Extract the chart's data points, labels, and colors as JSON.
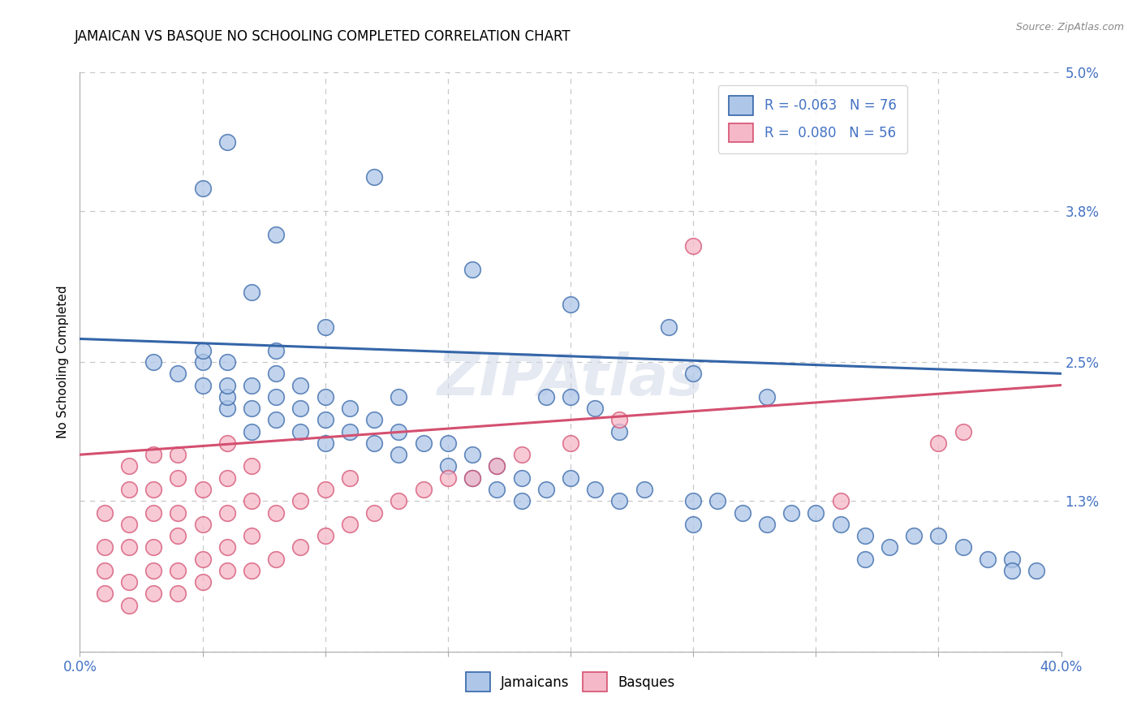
{
  "title": "JAMAICAN VS BASQUE NO SCHOOLING COMPLETED CORRELATION CHART",
  "source": "Source: ZipAtlas.com",
  "ylabel": "No Schooling Completed",
  "xmin": 0.0,
  "xmax": 0.04,
  "ymin": 0.0,
  "ymax": 0.05,
  "ytick_vals": [
    0.0,
    0.013,
    0.025,
    0.038,
    0.05
  ],
  "ytick_labels": [
    "",
    "1.3%",
    "2.5%",
    "3.8%",
    "5.0%"
  ],
  "jamaicans_R": "-0.063",
  "jamaicans_N": "76",
  "basques_R": "0.080",
  "basques_N": "56",
  "jamaican_color": "#aec6e8",
  "basque_color": "#f5b8c8",
  "jamaican_line_color": "#3465a8",
  "basque_line_color": "#d45070",
  "watermark": "ZIPAtlas",
  "background_color": "#ffffff",
  "grid_color": "#c8c8c8",
  "j_trend_x0": 0.0,
  "j_trend_x1": 0.04,
  "j_trend_y0": 0.027,
  "j_trend_y1": 0.024,
  "b_trend_x0": 0.0,
  "b_trend_x1": 0.04,
  "b_trend_y0": 0.017,
  "b_trend_y1": 0.023,
  "jamaicans_x": [
    0.003,
    0.004,
    0.005,
    0.005,
    0.005,
    0.006,
    0.006,
    0.006,
    0.006,
    0.007,
    0.007,
    0.007,
    0.007,
    0.008,
    0.008,
    0.008,
    0.008,
    0.009,
    0.009,
    0.009,
    0.01,
    0.01,
    0.01,
    0.01,
    0.011,
    0.011,
    0.012,
    0.012,
    0.013,
    0.013,
    0.013,
    0.014,
    0.015,
    0.015,
    0.016,
    0.016,
    0.017,
    0.017,
    0.018,
    0.019,
    0.019,
    0.02,
    0.02,
    0.021,
    0.021,
    0.022,
    0.022,
    0.023,
    0.024,
    0.025,
    0.025,
    0.026,
    0.027,
    0.028,
    0.028,
    0.029,
    0.03,
    0.031,
    0.032,
    0.033,
    0.034,
    0.035,
    0.036,
    0.037,
    0.038,
    0.038,
    0.039,
    0.02,
    0.016,
    0.012,
    0.008,
    0.006,
    0.005,
    0.018,
    0.025,
    0.032
  ],
  "jamaicans_y": [
    0.025,
    0.024,
    0.023,
    0.025,
    0.026,
    0.021,
    0.022,
    0.023,
    0.025,
    0.019,
    0.021,
    0.023,
    0.031,
    0.02,
    0.022,
    0.024,
    0.026,
    0.019,
    0.021,
    0.023,
    0.018,
    0.02,
    0.022,
    0.028,
    0.019,
    0.021,
    0.018,
    0.02,
    0.017,
    0.019,
    0.022,
    0.018,
    0.016,
    0.018,
    0.015,
    0.017,
    0.014,
    0.016,
    0.015,
    0.014,
    0.022,
    0.015,
    0.022,
    0.014,
    0.021,
    0.013,
    0.019,
    0.014,
    0.028,
    0.013,
    0.024,
    0.013,
    0.012,
    0.011,
    0.022,
    0.012,
    0.012,
    0.011,
    0.01,
    0.009,
    0.01,
    0.01,
    0.009,
    0.008,
    0.008,
    0.007,
    0.007,
    0.03,
    0.033,
    0.041,
    0.036,
    0.044,
    0.04,
    0.013,
    0.011,
    0.008
  ],
  "basques_x": [
    0.001,
    0.001,
    0.001,
    0.001,
    0.002,
    0.002,
    0.002,
    0.002,
    0.002,
    0.002,
    0.003,
    0.003,
    0.003,
    0.003,
    0.003,
    0.003,
    0.004,
    0.004,
    0.004,
    0.004,
    0.004,
    0.004,
    0.005,
    0.005,
    0.005,
    0.005,
    0.006,
    0.006,
    0.006,
    0.006,
    0.006,
    0.007,
    0.007,
    0.007,
    0.007,
    0.008,
    0.008,
    0.009,
    0.009,
    0.01,
    0.01,
    0.011,
    0.011,
    0.012,
    0.013,
    0.014,
    0.015,
    0.016,
    0.017,
    0.018,
    0.02,
    0.022,
    0.025,
    0.031,
    0.035,
    0.036
  ],
  "basques_y": [
    0.005,
    0.007,
    0.009,
    0.012,
    0.004,
    0.006,
    0.009,
    0.011,
    0.014,
    0.016,
    0.005,
    0.007,
    0.009,
    0.012,
    0.014,
    0.017,
    0.005,
    0.007,
    0.01,
    0.012,
    0.015,
    0.017,
    0.006,
    0.008,
    0.011,
    0.014,
    0.007,
    0.009,
    0.012,
    0.015,
    0.018,
    0.007,
    0.01,
    0.013,
    0.016,
    0.008,
    0.012,
    0.009,
    0.013,
    0.01,
    0.014,
    0.011,
    0.015,
    0.012,
    0.013,
    0.014,
    0.015,
    0.015,
    0.016,
    0.017,
    0.018,
    0.02,
    0.035,
    0.013,
    0.018,
    0.019
  ]
}
